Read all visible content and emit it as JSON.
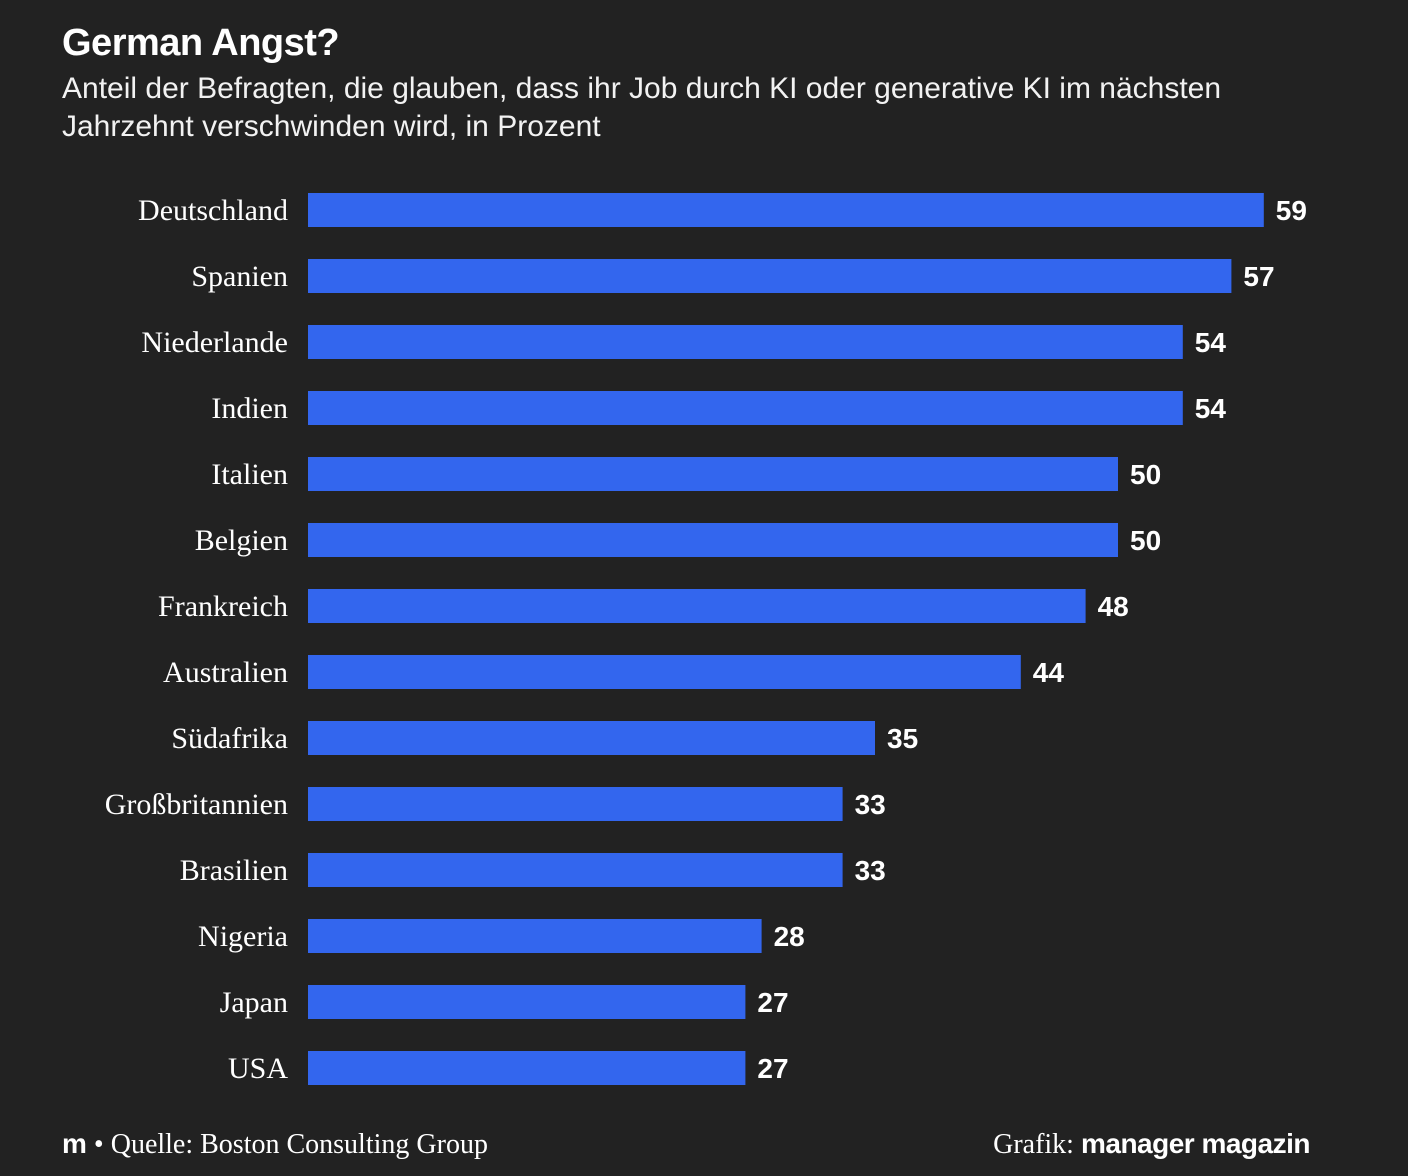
{
  "header": {
    "title": "German Angst?",
    "subtitle": "Anteil der Befragten, die glauben, dass ihr Job durch KI oder generative KI im nächsten Jahrzehnt verschwinden wird, in Prozent"
  },
  "footer": {
    "logo": "m",
    "bullet": "•",
    "source": "Quelle: Boston Consulting Group",
    "credit_prefix": "Grafik:",
    "credit_brand": "manager magazin"
  },
  "colors": {
    "background": "#222222",
    "bar": "#3366ee",
    "text": "#ffffff"
  },
  "chart_data": {
    "type": "bar",
    "orientation": "horizontal",
    "title": "German Angst?",
    "categories": [
      "Deutschland",
      "Spanien",
      "Niederlande",
      "Indien",
      "Italien",
      "Belgien",
      "Frankreich",
      "Australien",
      "Südafrika",
      "Großbritannien",
      "Brasilien",
      "Nigeria",
      "Japan",
      "USA"
    ],
    "values": [
      59,
      57,
      54,
      54,
      50,
      50,
      48,
      44,
      35,
      33,
      33,
      28,
      27,
      27
    ],
    "data_labels": true,
    "grid": false,
    "legend": "none"
  }
}
